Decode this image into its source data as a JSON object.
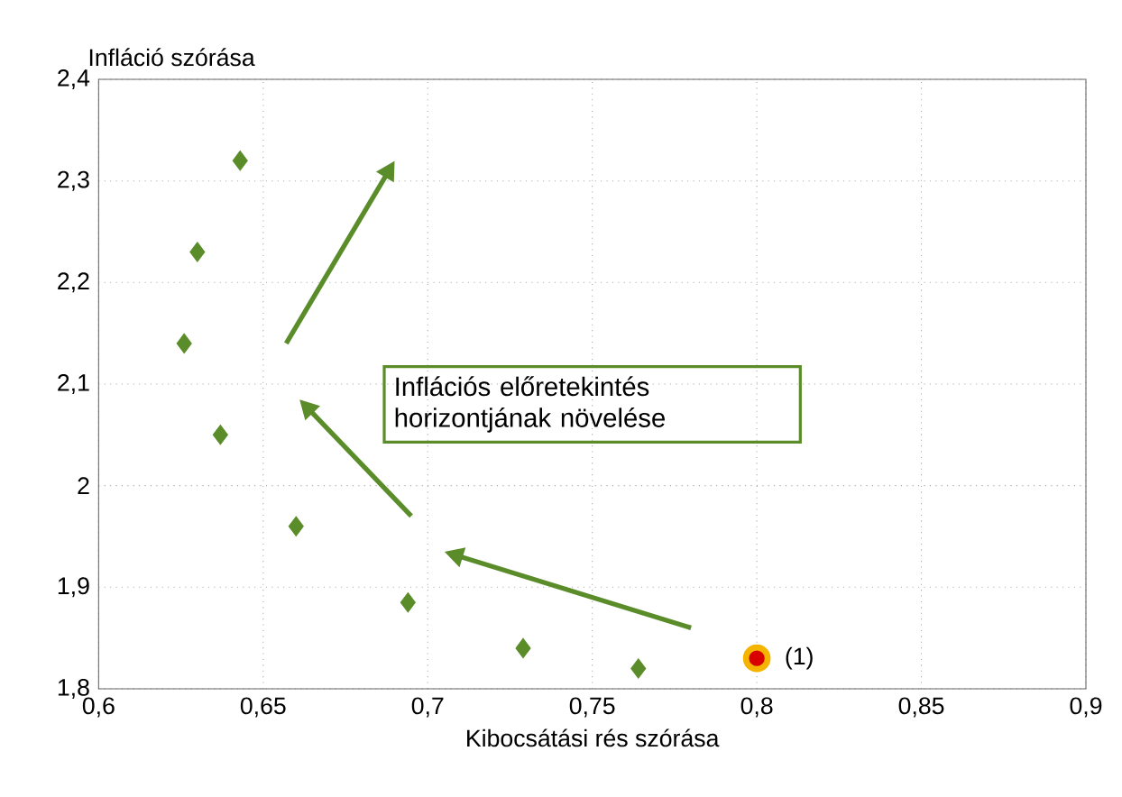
{
  "chart_data": {
    "type": "scatter",
    "xlabel": "Kibocsátási rés szórása",
    "ylabel": "Infláció szórása",
    "xlim": [
      0.6,
      0.9
    ],
    "ylim": [
      1.8,
      2.4
    ],
    "xticks": [
      {
        "value": 0.6,
        "label": "0,6"
      },
      {
        "value": 0.65,
        "label": "0,65"
      },
      {
        "value": 0.7,
        "label": "0,7"
      },
      {
        "value": 0.75,
        "label": "0,75"
      },
      {
        "value": 0.8,
        "label": "0,8"
      },
      {
        "value": 0.85,
        "label": "0,85"
      },
      {
        "value": 0.9,
        "label": "0,9"
      }
    ],
    "yticks": [
      {
        "value": 1.8,
        "label": "1,8"
      },
      {
        "value": 1.9,
        "label": "1,9"
      },
      2,
      {
        "value": 2.1,
        "label": "2,1"
      },
      {
        "value": 2.2,
        "label": "2,2"
      },
      {
        "value": 2.3,
        "label": "2,3"
      },
      {
        "value": 2.4,
        "label": "2,4"
      }
    ],
    "grid": true,
    "series": [
      {
        "color": "#5b8c2a",
        "marker": "diamond",
        "x": [
          0.643,
          0.63,
          0.626,
          0.637,
          0.66,
          0.694,
          0.729,
          0.764
        ],
        "values": [
          2.32,
          2.23,
          2.14,
          2.05,
          1.96,
          1.885,
          1.84,
          1.82
        ]
      },
      {
        "color": "#f5b400",
        "marker": "circle",
        "x": [
          0.8
        ],
        "values": [
          1.83
        ]
      }
    ],
    "annotations": [
      {
        "text": "(1)",
        "x": 0.8,
        "y": 1.83
      },
      "Inflációs előretekintés horizontjának növelése"
    ]
  }
}
